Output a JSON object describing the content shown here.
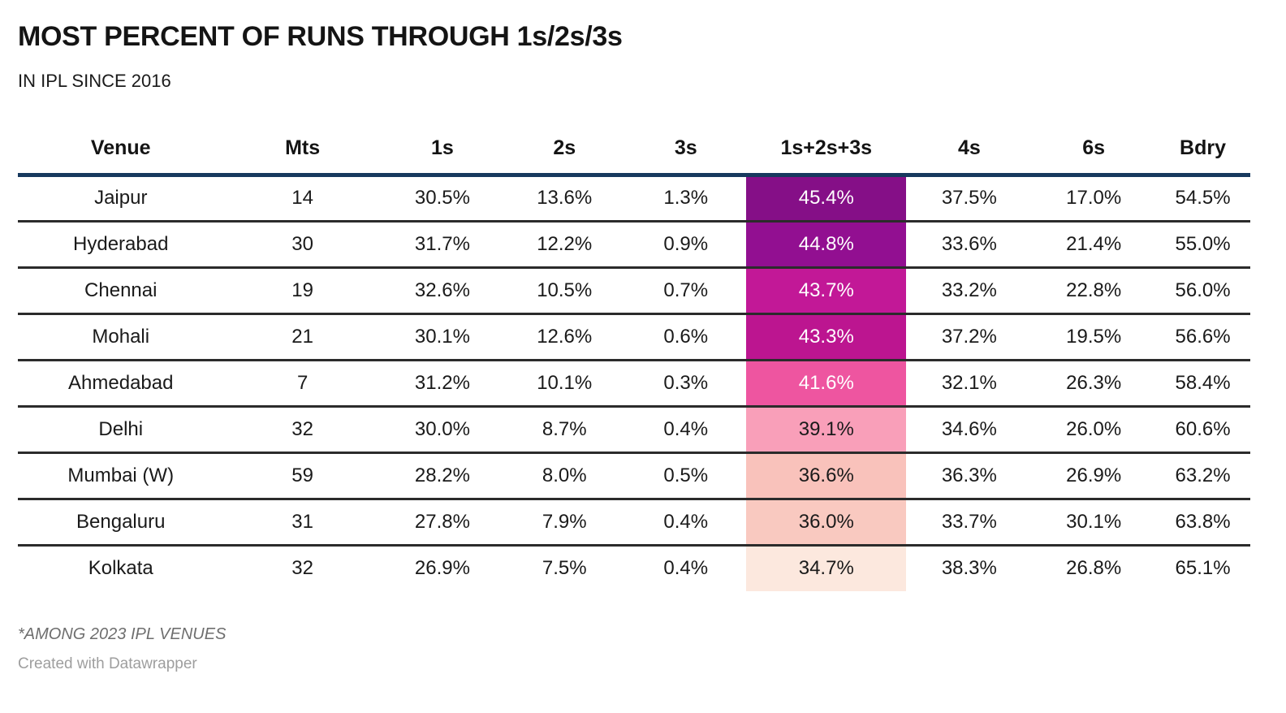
{
  "header": {
    "title": "MOST PERCENT OF RUNS THROUGH 1s/2s/3s",
    "subtitle": "IN IPL SINCE 2016"
  },
  "footer": {
    "note": "*AMONG 2023 IPL VENUES",
    "credit": "Created with Datawrapper"
  },
  "colors": {
    "header_rule": "#17395e",
    "row_rule": "#2b2b2b",
    "title_text": "#141414",
    "note_text": "#6e6e6e",
    "credit_text": "#9e9e9e"
  },
  "chart_data": {
    "type": "table",
    "title": "MOST PERCENT OF RUNS THROUGH 1s/2s/3s",
    "subtitle": "IN IPL SINCE 2016",
    "columns": [
      "Venue",
      "Mts",
      "1s",
      "2s",
      "3s",
      "1s+2s+3s",
      "4s",
      "6s",
      "Bdry"
    ],
    "column_widths_pct": [
      16.7,
      12.8,
      9.9,
      9.9,
      9.8,
      13.0,
      10.2,
      10.0,
      7.7
    ],
    "highlight_column_index": 5,
    "rows": [
      [
        "Jaipur",
        "14",
        "30.5%",
        "13.6%",
        "1.3%",
        "45.4%",
        "37.5%",
        "17.0%",
        "54.5%"
      ],
      [
        "Hyderabad",
        "30",
        "31.7%",
        "12.2%",
        "0.9%",
        "44.8%",
        "33.6%",
        "21.4%",
        "55.0%"
      ],
      [
        "Chennai",
        "19",
        "32.6%",
        "10.5%",
        "0.7%",
        "43.7%",
        "33.2%",
        "22.8%",
        "56.0%"
      ],
      [
        "Mohali",
        "21",
        "30.1%",
        "12.6%",
        "0.6%",
        "43.3%",
        "37.2%",
        "19.5%",
        "56.6%"
      ],
      [
        "Ahmedabad",
        "7",
        "31.2%",
        "10.1%",
        "0.3%",
        "41.6%",
        "32.1%",
        "26.3%",
        "58.4%"
      ],
      [
        "Delhi",
        "32",
        "30.0%",
        "8.7%",
        "0.4%",
        "39.1%",
        "34.6%",
        "26.0%",
        "60.6%"
      ],
      [
        "Mumbai (W)",
        "59",
        "28.2%",
        "8.0%",
        "0.5%",
        "36.6%",
        "36.3%",
        "26.9%",
        "63.2%"
      ],
      [
        "Bengaluru",
        "31",
        "27.8%",
        "7.9%",
        "0.4%",
        "36.0%",
        "33.7%",
        "30.1%",
        "63.8%"
      ],
      [
        "Kolkata",
        "32",
        "26.9%",
        "7.5%",
        "0.4%",
        "34.7%",
        "38.3%",
        "26.8%",
        "65.1%"
      ]
    ],
    "highlight_cell_bg": [
      "#850f87",
      "#920f91",
      "#c21897",
      "#bc1590",
      "#ee55a0",
      "#f99fb9",
      "#f9c2bb",
      "#f9c9c0",
      "#fce8de"
    ],
    "highlight_cell_fg": [
      "#ffffff",
      "#ffffff",
      "#ffffff",
      "#ffffff",
      "#ffffff",
      "#1a1a1a",
      "#1a1a1a",
      "#1a1a1a",
      "#1a1a1a"
    ]
  }
}
